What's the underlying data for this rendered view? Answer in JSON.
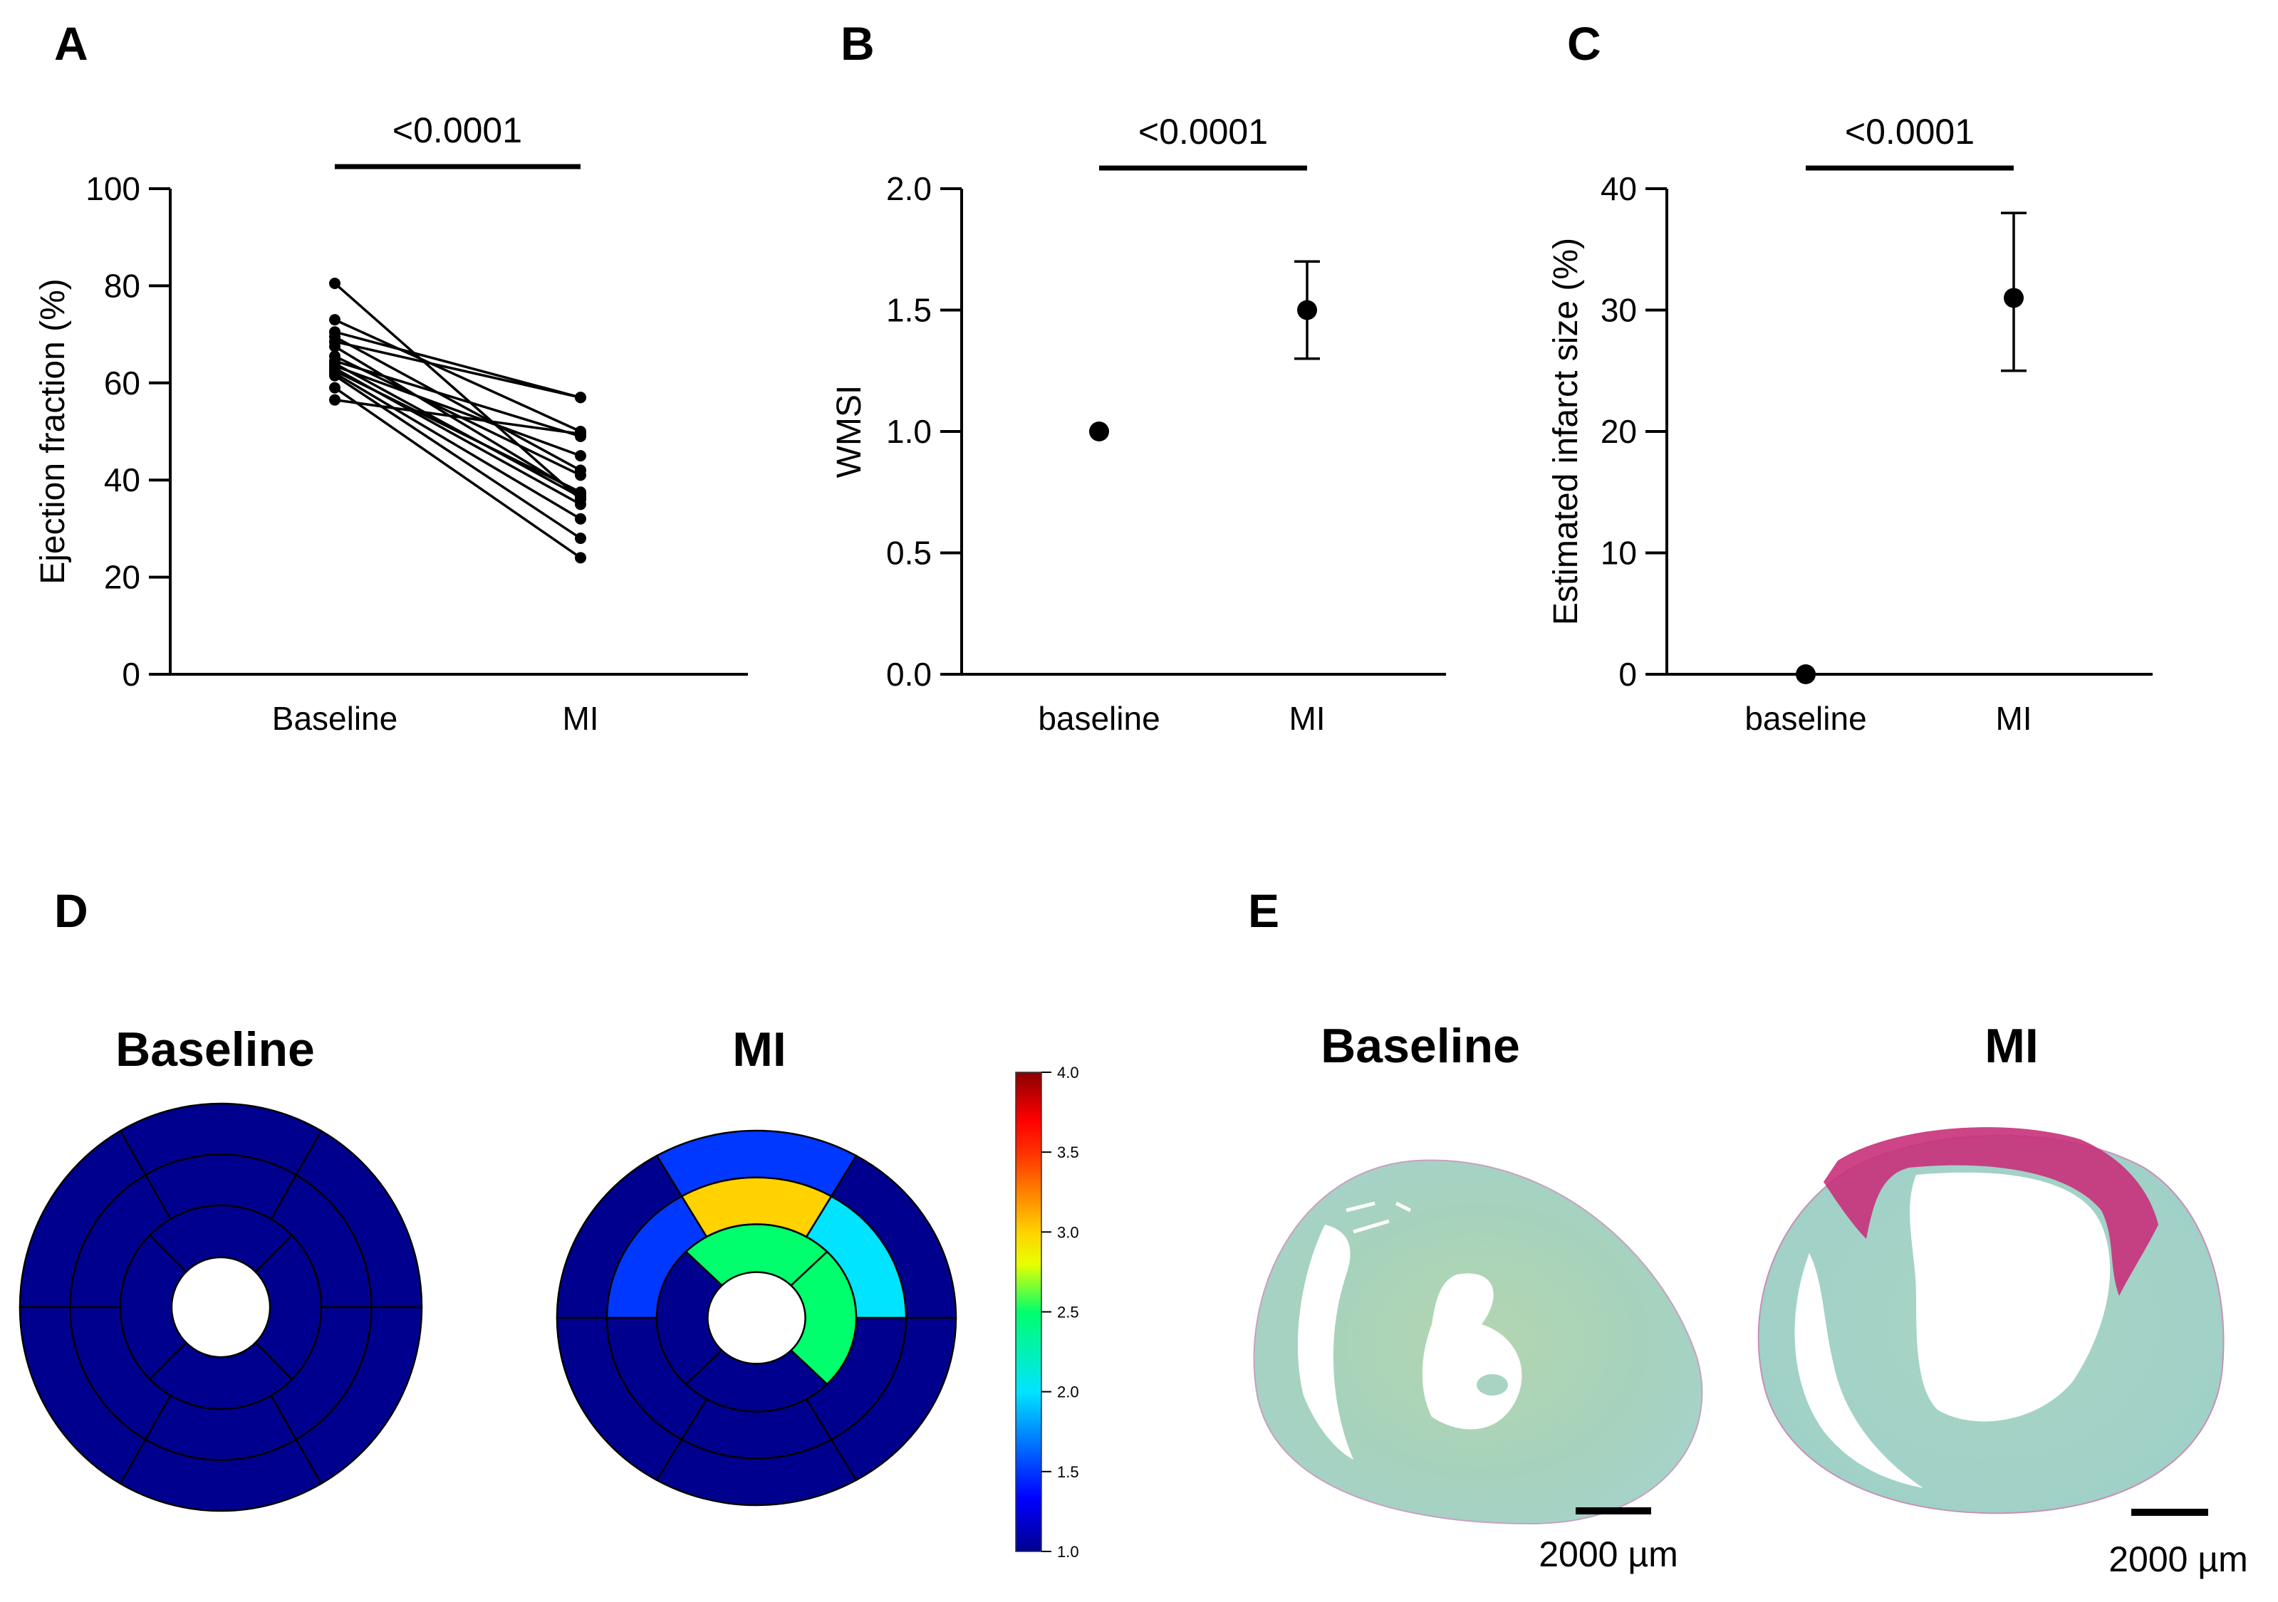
{
  "panels": {
    "A": {
      "letter": "A"
    },
    "B": {
      "letter": "B"
    },
    "C": {
      "letter": "C"
    },
    "D": {
      "letter": "D",
      "titles": [
        "Baseline",
        "MI"
      ]
    },
    "E": {
      "letter": "E",
      "titles": [
        "Baseline",
        "MI"
      ],
      "scale_bar_labels": [
        "2000 µm",
        "2000 µm"
      ]
    }
  },
  "chart_data": [
    {
      "id": "A",
      "type": "line",
      "description": "Paired before-after plot (each line one subject)",
      "title": "",
      "xlabel": "",
      "ylabel": "Ejection fraction (%)",
      "categories": [
        "Baseline",
        "MI"
      ],
      "ylim": [
        0,
        100
      ],
      "yticks": [
        0,
        20,
        40,
        60,
        80,
        100
      ],
      "significance": {
        "label": "<0.0001",
        "between": [
          "Baseline",
          "MI"
        ]
      },
      "series": [
        {
          "name": "subject-1",
          "values": [
            80.5,
            36.0
          ]
        },
        {
          "name": "subject-2",
          "values": [
            73.0,
            50.0
          ]
        },
        {
          "name": "subject-3",
          "values": [
            70.5,
            57.0
          ]
        },
        {
          "name": "subject-4",
          "values": [
            69.5,
            42.0
          ]
        },
        {
          "name": "subject-5",
          "values": [
            68.5,
            57.0
          ]
        },
        {
          "name": "subject-6",
          "values": [
            67.5,
            37.0
          ]
        },
        {
          "name": "subject-7",
          "values": [
            65.5,
            41.0
          ]
        },
        {
          "name": "subject-8",
          "values": [
            64.5,
            49.0
          ]
        },
        {
          "name": "subject-9",
          "values": [
            64.0,
            36.5
          ]
        },
        {
          "name": "subject-10",
          "values": [
            63.5,
            45.0
          ]
        },
        {
          "name": "subject-11",
          "values": [
            63.0,
            35.0
          ]
        },
        {
          "name": "subject-12",
          "values": [
            62.5,
            37.5
          ]
        },
        {
          "name": "subject-13",
          "values": [
            62.0,
            32.0
          ]
        },
        {
          "name": "subject-14",
          "values": [
            61.5,
            28.0
          ]
        },
        {
          "name": "subject-15",
          "values": [
            59.0,
            24.0
          ]
        },
        {
          "name": "subject-16",
          "values": [
            56.5,
            49.5
          ]
        }
      ],
      "grid": false
    },
    {
      "id": "B",
      "type": "scatter",
      "title": "",
      "xlabel": "",
      "ylabel": "WMSI",
      "categories": [
        "baseline",
        "MI"
      ],
      "ylim": [
        0,
        2.0
      ],
      "yticks": [
        0.0,
        0.5,
        1.0,
        1.5,
        2.0
      ],
      "ytick_labels": [
        "0.0",
        "0.5",
        "1.0",
        "1.5",
        "2.0"
      ],
      "values": [
        1.0,
        1.5
      ],
      "error_low": [
        null,
        1.3
      ],
      "error_high": [
        null,
        1.7
      ],
      "significance": {
        "label": "<0.0001",
        "between": [
          "baseline",
          "MI"
        ]
      },
      "grid": false
    },
    {
      "id": "C",
      "type": "scatter",
      "title": "",
      "xlabel": "",
      "ylabel": "Estimated infarct size (%)",
      "categories": [
        "baseline",
        "MI"
      ],
      "ylim": [
        0,
        40
      ],
      "yticks": [
        0,
        10,
        20,
        30,
        40
      ],
      "ytick_labels": [
        "0",
        "10",
        "20",
        "30",
        "40"
      ],
      "values": [
        0,
        31
      ],
      "error_low": [
        null,
        25
      ],
      "error_high": [
        null,
        38
      ],
      "significance": {
        "label": "<0.0001",
        "between": [
          "baseline",
          "MI"
        ]
      },
      "grid": false
    },
    {
      "id": "D",
      "type": "heatmap",
      "description": "16-segment bullseye (polar) map of wall motion score",
      "rings": [
        "basal",
        "mid",
        "apical"
      ],
      "segments_per_ring": [
        6,
        6,
        4
      ],
      "maps": [
        {
          "title": "Baseline",
          "basal": [
            1,
            1,
            1,
            1,
            1,
            1
          ],
          "mid": [
            1,
            1,
            1,
            1,
            1,
            1
          ],
          "apical": [
            1,
            1,
            1,
            1
          ]
        },
        {
          "title": "MI",
          "basal": [
            1,
            1.5,
            1,
            1,
            1,
            1
          ],
          "mid": [
            2.0,
            3.0,
            1.5,
            1,
            1,
            1
          ],
          "apical": [
            2.5,
            2.5,
            1,
            1
          ]
        }
      ],
      "segment_order_note": "basal/mid start at 0-60deg (right, counter-clockwise); apical starts at -45..45deg",
      "colorbar": {
        "range": [
          1.0,
          4.0
        ],
        "ticks": [
          1.0,
          1.5,
          2.0,
          2.5,
          3.0,
          3.5,
          4.0
        ],
        "tick_labels": [
          "1.0",
          "1.5",
          "2.0",
          "2.5",
          "3.0",
          "3.5",
          "4.0"
        ],
        "stops": [
          {
            "v": 1.0,
            "c": "#00008f"
          },
          {
            "v": 1.33,
            "c": "#0000ff"
          },
          {
            "v": 1.5,
            "c": "#0038ff"
          },
          {
            "v": 2.0,
            "c": "#00e4ff"
          },
          {
            "v": 2.5,
            "c": "#00ff6c"
          },
          {
            "v": 2.8,
            "c": "#e8ff00"
          },
          {
            "v": 3.0,
            "c": "#ffd200"
          },
          {
            "v": 3.5,
            "c": "#ff3000"
          },
          {
            "v": 3.7,
            "c": "#ff0000"
          },
          {
            "v": 4.0,
            "c": "#8b0000"
          }
        ]
      }
    }
  ],
  "colors": {
    "myocardium": "#a8d4c8",
    "fibrosis": "#c8307a",
    "axis": "#000000"
  }
}
